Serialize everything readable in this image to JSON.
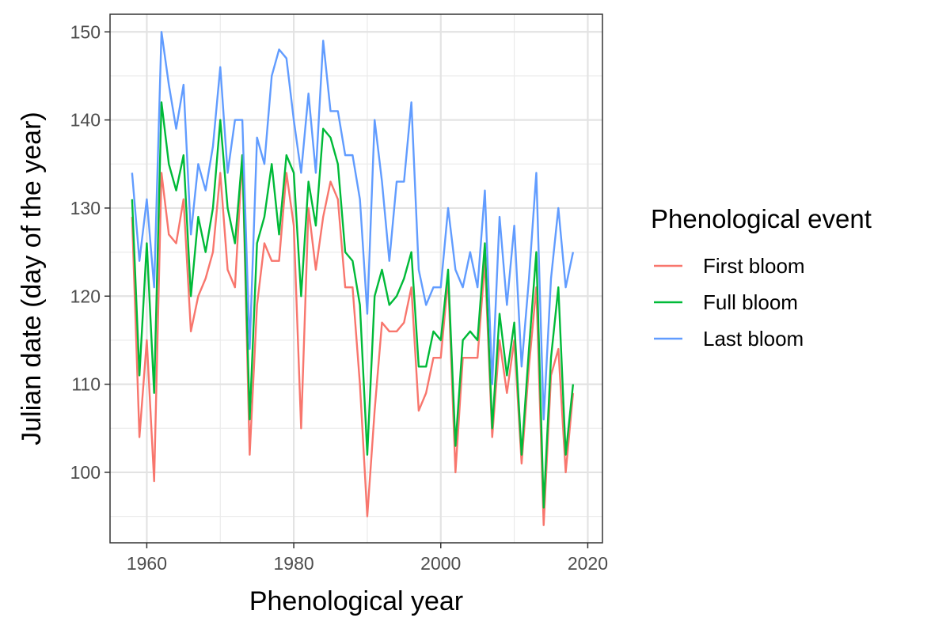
{
  "chart_data": {
    "type": "line",
    "xlabel": "Phenological year",
    "ylabel": "Julian date (day of the year)",
    "xlim": [
      1955,
      2022
    ],
    "ylim": [
      92,
      152
    ],
    "x_ticks": [
      1960,
      1980,
      2000,
      2020
    ],
    "y_ticks": [
      100,
      110,
      120,
      130,
      140,
      150
    ],
    "x_tick_labels": [
      "1960",
      "1980",
      "2000",
      "2020"
    ],
    "y_tick_labels": [
      "100",
      "110",
      "120",
      "130",
      "140",
      "150"
    ],
    "grid": true,
    "legend": {
      "title": "Phenological event",
      "position": "right"
    },
    "x": [
      1958,
      1959,
      1960,
      1961,
      1962,
      1963,
      1964,
      1965,
      1966,
      1967,
      1968,
      1969,
      1970,
      1971,
      1972,
      1973,
      1974,
      1975,
      1976,
      1977,
      1978,
      1979,
      1980,
      1981,
      1982,
      1983,
      1984,
      1985,
      1986,
      1987,
      1988,
      1989,
      1990,
      1991,
      1992,
      1993,
      1994,
      1995,
      1996,
      1997,
      1998,
      1999,
      2000,
      2001,
      2002,
      2003,
      2004,
      2005,
      2006,
      2007,
      2008,
      2009,
      2010,
      2011,
      2012,
      2013,
      2014,
      2015,
      2016,
      2017,
      2018
    ],
    "series": [
      {
        "name": "First bloom",
        "color": "#F8766D",
        "values": [
          129,
          104,
          115,
          99,
          134,
          127,
          126,
          131,
          116,
          120,
          122,
          125,
          134,
          123,
          121,
          136,
          102,
          119,
          126,
          124,
          124,
          134,
          128,
          105,
          130,
          123,
          129,
          133,
          131,
          121,
          121,
          110,
          95,
          107,
          117,
          116,
          116,
          117,
          121,
          107,
          109,
          113,
          113,
          122,
          100,
          113,
          113,
          113,
          124,
          104,
          115,
          109,
          115,
          101,
          112,
          121,
          94,
          111,
          114,
          100,
          109
        ]
      },
      {
        "name": "Full bloom",
        "color": "#00BA38",
        "values": [
          131,
          111,
          126,
          109,
          142,
          135,
          132,
          136,
          120,
          129,
          125,
          130,
          140,
          130,
          126,
          136,
          106,
          126,
          129,
          135,
          127,
          136,
          134,
          120,
          133,
          128,
          139,
          138,
          135,
          125,
          124,
          119,
          102,
          120,
          123,
          119,
          120,
          122,
          125,
          112,
          112,
          116,
          115,
          123,
          103,
          115,
          116,
          115,
          126,
          105,
          118,
          111,
          117,
          102,
          114,
          125,
          96,
          113,
          121,
          102,
          110
        ]
      },
      {
        "name": "Last bloom",
        "color": "#619CFF",
        "values": [
          134,
          124,
          131,
          121,
          150,
          144,
          139,
          144,
          127,
          135,
          132,
          137,
          146,
          134,
          140,
          140,
          114,
          138,
          135,
          145,
          148,
          147,
          140,
          134,
          143,
          134,
          149,
          141,
          141,
          136,
          136,
          131,
          118,
          140,
          133,
          124,
          133,
          133,
          142,
          123,
          119,
          121,
          121,
          130,
          123,
          121,
          125,
          121,
          132,
          110,
          129,
          119,
          128,
          112,
          122,
          134,
          106,
          122,
          130,
          121,
          125
        ]
      }
    ]
  }
}
